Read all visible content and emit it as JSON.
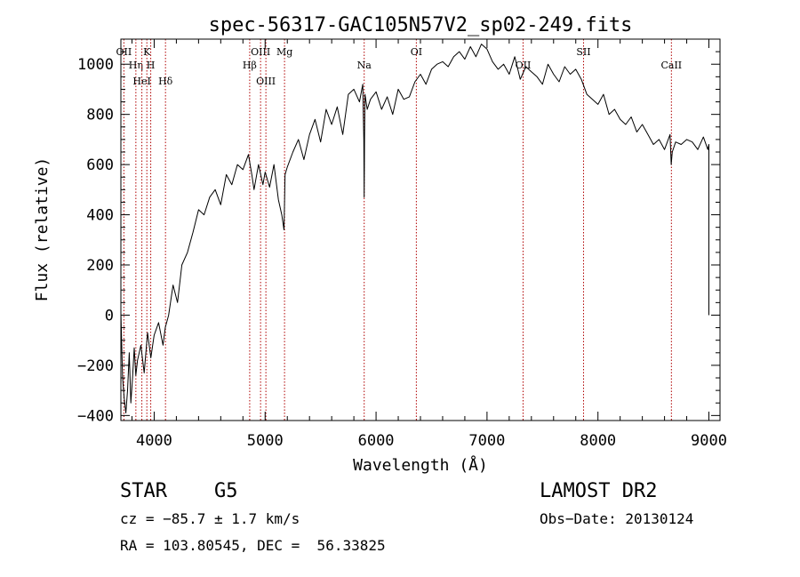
{
  "chart_data": {
    "type": "line",
    "title": "spec-56317-GAC105N57V2_sp02-249.fits",
    "xlabel": "Wavelength (Å)",
    "ylabel": "Flux (relative)",
    "xlim": [
      3700,
      9100
    ],
    "ylim": [
      -420,
      1100
    ],
    "xticks": [
      4000,
      5000,
      6000,
      7000,
      8000,
      9000
    ],
    "yticks": [
      -400,
      -200,
      0,
      200,
      400,
      600,
      800,
      1000
    ],
    "xtick_labels": [
      "4000",
      "5000",
      "6000",
      "7000",
      "8000",
      "9000"
    ],
    "ytick_labels": [
      "−400",
      "−200",
      "0",
      "200",
      "400",
      "600",
      "800",
      "1000"
    ],
    "grid": false,
    "series": [
      {
        "color": "#000000",
        "x": [
          3700,
          3715,
          3730,
          3745,
          3760,
          3775,
          3790,
          3805,
          3820,
          3835,
          3850,
          3880,
          3910,
          3940,
          3970,
          4000,
          4040,
          4080,
          4100,
          4130,
          4170,
          4210,
          4250,
          4300,
          4350,
          4400,
          4450,
          4500,
          4550,
          4600,
          4650,
          4700,
          4750,
          4800,
          4850,
          4880,
          4900,
          4940,
          4980,
          5000,
          5040,
          5080,
          5120,
          5150,
          5170,
          5180,
          5200,
          5250,
          5300,
          5350,
          5400,
          5450,
          5500,
          5550,
          5600,
          5650,
          5700,
          5750,
          5800,
          5850,
          5880,
          5890,
          5893,
          5896,
          5900,
          5920,
          5950,
          6000,
          6050,
          6100,
          6150,
          6200,
          6250,
          6300,
          6350,
          6400,
          6450,
          6500,
          6550,
          6600,
          6650,
          6700,
          6750,
          6800,
          6850,
          6900,
          6950,
          7000,
          7050,
          7100,
          7150,
          7200,
          7250,
          7300,
          7350,
          7400,
          7450,
          7500,
          7550,
          7600,
          7650,
          7700,
          7750,
          7800,
          7850,
          7900,
          7950,
          8000,
          8050,
          8100,
          8150,
          8200,
          8250,
          8300,
          8350,
          8400,
          8450,
          8500,
          8550,
          8600,
          8650,
          8660,
          8670,
          8700,
          8750,
          8800,
          8850,
          8900,
          8950,
          8990,
          9000,
          9000
        ],
        "y": [
          10,
          -250,
          -330,
          -390,
          -300,
          -150,
          -350,
          -250,
          -130,
          -240,
          -180,
          -120,
          -230,
          -70,
          -170,
          -80,
          -30,
          -120,
          -50,
          0,
          120,
          50,
          200,
          250,
          330,
          420,
          400,
          470,
          500,
          440,
          560,
          520,
          600,
          580,
          640,
          560,
          500,
          600,
          520,
          570,
          510,
          600,
          460,
          400,
          340,
          560,
          590,
          650,
          700,
          620,
          720,
          780,
          690,
          820,
          760,
          830,
          720,
          880,
          900,
          850,
          920,
          700,
          470,
          700,
          880,
          820,
          860,
          890,
          820,
          870,
          800,
          900,
          860,
          870,
          930,
          960,
          920,
          980,
          1000,
          1010,
          990,
          1030,
          1050,
          1020,
          1070,
          1030,
          1080,
          1060,
          1010,
          980,
          1000,
          960,
          1030,
          940,
          990,
          970,
          950,
          920,
          1000,
          960,
          930,
          990,
          960,
          980,
          940,
          880,
          860,
          840,
          880,
          800,
          820,
          780,
          760,
          790,
          730,
          760,
          720,
          680,
          700,
          660,
          720,
          600,
          650,
          690,
          680,
          700,
          690,
          660,
          710,
          660,
          680,
          0
        ]
      }
    ],
    "lines": [
      {
        "label": "OII",
        "x": 3727
      },
      {
        "label": "Hη",
        "x": 3835
      },
      {
        "label": "HeI",
        "x": 3889
      },
      {
        "label": "K",
        "x": 3934
      },
      {
        "label": "H",
        "x": 3969
      },
      {
        "label": "Hδ",
        "x": 4102
      },
      {
        "label": "Hβ",
        "x": 4861
      },
      {
        "label": "OIII",
        "x": 4959
      },
      {
        "label": "OIII",
        "x": 5007
      },
      {
        "label": "Mg",
        "x": 5175
      },
      {
        "label": "Na",
        "x": 5893
      },
      {
        "label": "OI",
        "x": 6363
      },
      {
        "label": "OII",
        "x": 7325
      },
      {
        "label": "SII",
        "x": 7870
      },
      {
        "label": "CaII",
        "x": 8662
      }
    ],
    "line_color": "#b00000"
  },
  "info": {
    "object": "STAR    G5",
    "survey": "LAMOST DR2",
    "cz": "cz = −85.7 ± 1.7 km/s",
    "obs_date": "Obs−Date: 20130124",
    "coords": "RA = 103.80545, DEC =  56.33825"
  }
}
